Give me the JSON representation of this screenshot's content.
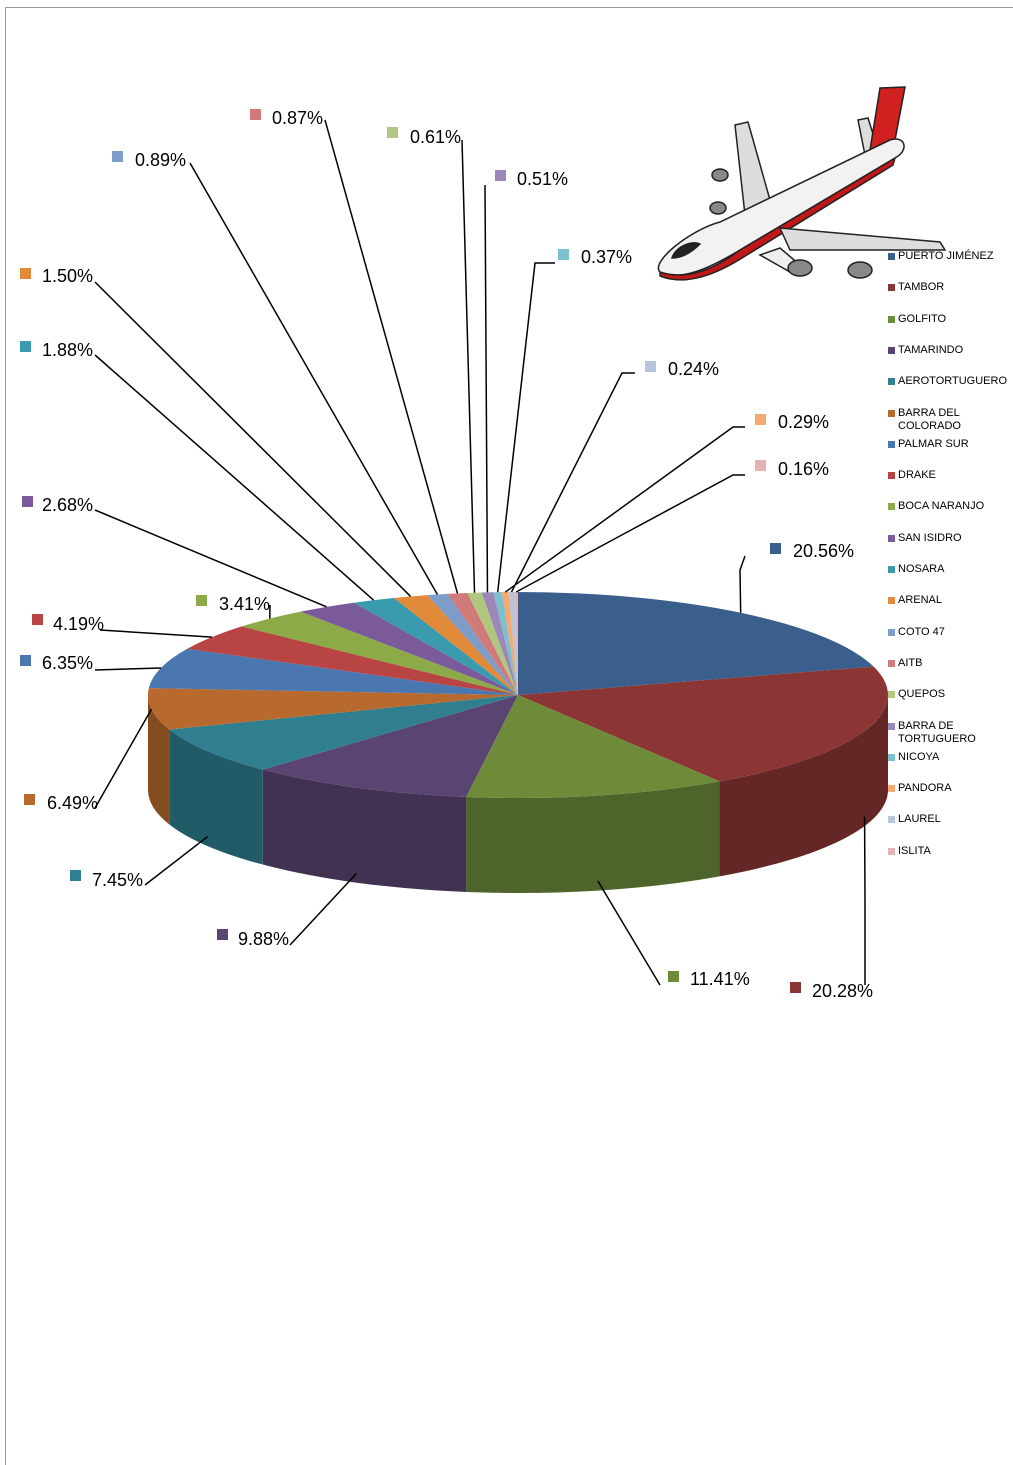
{
  "chart_data": {
    "type": "pie3d",
    "categories": [
      "PUERTO JIMÉNEZ",
      "TAMBOR",
      "GOLFITO",
      "TAMARINDO",
      "AEROTORTUGUERO",
      "BARRA DEL COLORADO",
      "PALMAR SUR",
      "DRAKE",
      "BOCA NARANJO",
      "SAN ISIDRO",
      "NOSARA",
      "ARENAL",
      "COTO 47",
      "AITB",
      "QUEPOS",
      "BARRA DE TORTUGUERO",
      "NICOYA",
      "PANDORA",
      "LAUREL",
      "ISLITA"
    ],
    "values": [
      20.56,
      20.28,
      11.41,
      9.88,
      7.45,
      6.49,
      6.35,
      4.19,
      3.41,
      2.68,
      1.88,
      1.5,
      0.89,
      0.87,
      0.61,
      0.51,
      0.37,
      0.29,
      0.24,
      0.16
    ],
    "value_labels": [
      "20.56%",
      "20.28%",
      "11.41%",
      "9.88%",
      "7.45%",
      "6.49%",
      "6.35%",
      "4.19%",
      "3.41%",
      "2.68%",
      "1.88%",
      "1.50%",
      "0.89%",
      "0.87%",
      "0.61%",
      "0.51%",
      "0.37%",
      "0.29%",
      "0.24%",
      "0.16%"
    ],
    "colors": [
      "#3b5f8c",
      "#8c3535",
      "#6e8b3a",
      "#5a4472",
      "#2f7f90",
      "#b8692e",
      "#4a77b0",
      "#b84444",
      "#8daa48",
      "#7a5a9a",
      "#3a9aae",
      "#e08a3a",
      "#7e9cc8",
      "#d07a7a",
      "#afc77e",
      "#9c88b8",
      "#7cc0d0",
      "#f5a870",
      "#b8c4de",
      "#e4b4b4"
    ],
    "legend": "right"
  }
}
